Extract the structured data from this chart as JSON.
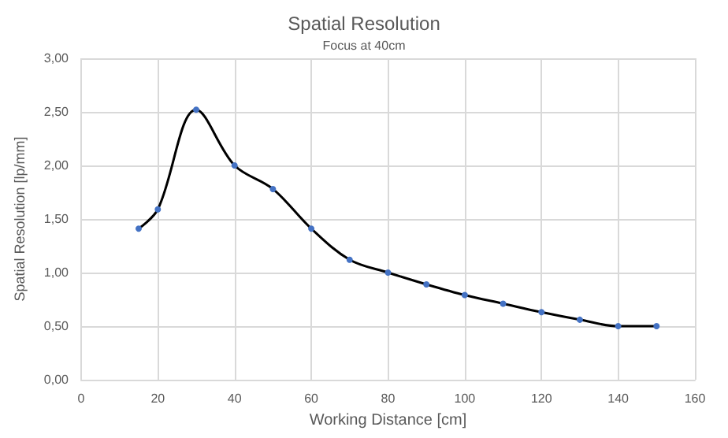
{
  "chart_data": {
    "type": "line",
    "title": "Spatial Resolution",
    "subtitle": "Focus at 40cm",
    "xlabel": "Working Distance [cm]",
    "ylabel": "Spatial Resolution [lp/mm]",
    "x": [
      15,
      20,
      30,
      40,
      50,
      60,
      70,
      80,
      90,
      100,
      110,
      120,
      130,
      140,
      150
    ],
    "series": [
      {
        "color": "#000000",
        "colors": [
          "#4472c4",
          "#4472c4",
          "#4472c4",
          "#4472c4",
          "#4472c4",
          "#4472c4",
          "#4472c4",
          "#4472c4",
          "#4472c4",
          "#4472c4",
          "#4472c4",
          "#4472c4",
          "#4472c4",
          "#4472c4",
          "#4472c4"
        ],
        "values": [
          1.41,
          1.59,
          2.52,
          2.0,
          1.78,
          1.41,
          1.12,
          1.0,
          0.89,
          0.79,
          0.71,
          0.63,
          0.56,
          0.5,
          0.5
        ]
      }
    ],
    "xlim": [
      0,
      160
    ],
    "xticks": [
      0,
      20,
      40,
      60,
      80,
      100,
      120,
      140,
      160
    ],
    "ylim": [
      0,
      3
    ],
    "yticks": [
      {
        "value": 0,
        "label": "0,00"
      },
      {
        "value": 0.5,
        "label": "0,50"
      },
      {
        "value": 1,
        "label": "1,00"
      },
      {
        "value": 1.5,
        "label": "1,50"
      },
      {
        "value": 2,
        "label": "2,00"
      },
      {
        "value": 2.5,
        "label": "2,50"
      },
      {
        "value": 3,
        "label": "3,00"
      }
    ],
    "grid": true,
    "marker": "circle",
    "line_style": "solid"
  }
}
